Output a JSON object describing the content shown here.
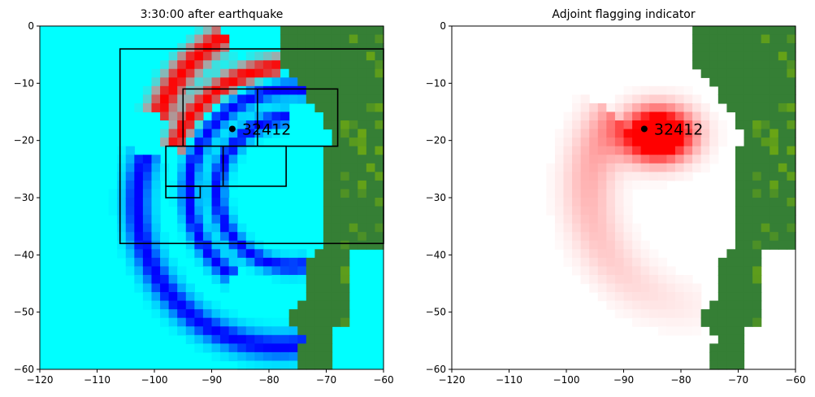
{
  "chart_data": [
    {
      "type": "heatmap",
      "title": "3:30:00 after earthquake",
      "xlabel": "",
      "ylabel": "",
      "xlim": [
        -120,
        -60
      ],
      "ylim": [
        -60,
        0
      ],
      "xticks": [
        -120,
        -110,
        -100,
        -90,
        -80,
        -70,
        -60
      ],
      "yticks": [
        0,
        -10,
        -20,
        -30,
        -40,
        -50,
        -60
      ],
      "grid": false,
      "colors": {
        "ocean": "#00ffff",
        "land": "#357f35",
        "land_high": "#6aa614",
        "positive": "#ff0000",
        "negative": "#0000ff",
        "neutral": "#a7a7a7"
      },
      "gauge": {
        "label": "32412",
        "x": -86.4,
        "y": -17.98
      },
      "regions": [
        {
          "x1": -106,
          "x2": -60,
          "y1": -38,
          "y2": -4
        },
        {
          "x1": -95,
          "x2": -68,
          "y1": -21,
          "y2": -11
        },
        {
          "x1": -82,
          "x2": -82,
          "y1": -21,
          "y2": -11
        },
        {
          "x1": -98,
          "x2": -77,
          "y1": -28,
          "y2": -21
        },
        {
          "x1": -88,
          "x2": -88,
          "y1": -28,
          "y2": -21
        },
        {
          "x1": -98,
          "x2": -92,
          "y1": -30,
          "y2": -28
        }
      ],
      "wavefronts": [
        {
          "name": "outer leading crest",
          "sign": 1,
          "center": [
            -74,
            -25
          ],
          "radius": 27,
          "from_deg": 120,
          "to_deg": 160,
          "width": 2.2
        },
        {
          "name": "crest",
          "sign": 1,
          "center": [
            -76,
            -29
          ],
          "radius": 22,
          "from_deg": 95,
          "to_deg": 160,
          "width": 1.8
        },
        {
          "name": "trough",
          "sign": -1,
          "center": [
            -76,
            -29
          ],
          "radius": 18,
          "from_deg": 10,
          "to_deg": 235,
          "width": 1.6
        },
        {
          "name": "second ring",
          "sign": -1,
          "center": [
            -76,
            -29
          ],
          "radius": 13,
          "from_deg": 90,
          "to_deg": 280,
          "width": 1.5
        },
        {
          "name": "outer tail",
          "sign": -1,
          "center": [
            -78,
            -31
          ],
          "radius": 25,
          "from_deg": 160,
          "to_deg": 290,
          "width": 2.4
        }
      ]
    },
    {
      "type": "heatmap",
      "title": "Adjoint flagging indicator",
      "xlabel": "",
      "ylabel": "",
      "xlim": [
        -120,
        -60
      ],
      "ylim": [
        -60,
        0
      ],
      "xticks": [
        -120,
        -110,
        -100,
        -90,
        -80,
        -70,
        -60
      ],
      "yticks": [
        0,
        -10,
        -20,
        -30,
        -40,
        -50,
        -60
      ],
      "grid": false,
      "colors": {
        "background": "#ffffff",
        "land": "#357f35",
        "land_high": "#6aa614",
        "flag": "#ff0000"
      },
      "gauge": {
        "label": "32412",
        "x": -86.4,
        "y": -17.98
      },
      "peak": {
        "x": -84,
        "y": -19,
        "max_intensity": 1.0
      }
    }
  ]
}
